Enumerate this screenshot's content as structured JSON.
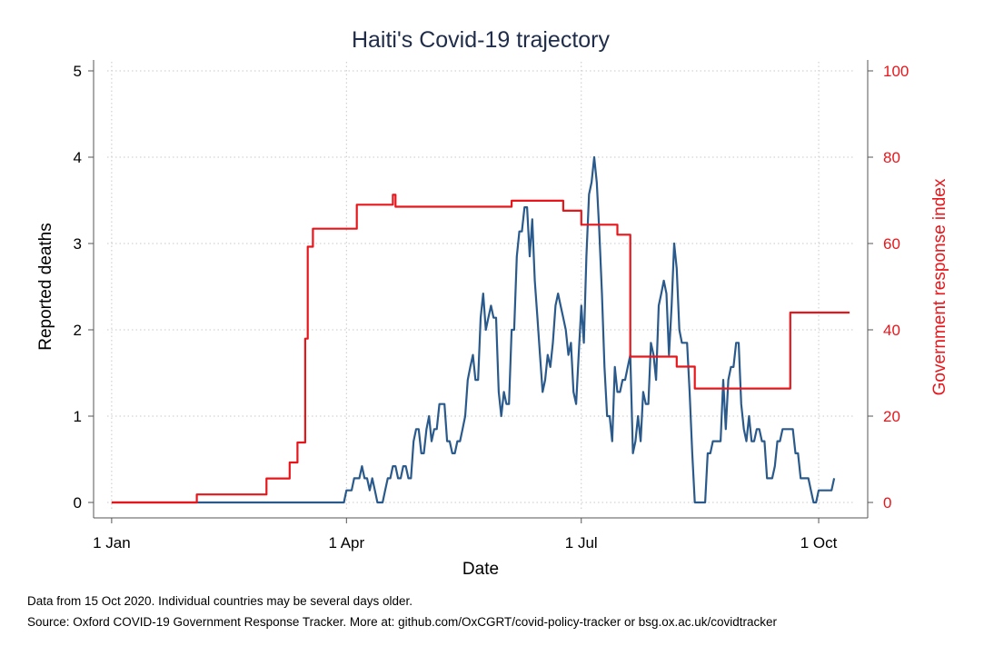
{
  "chart_data": {
    "type": "line",
    "title": "Haiti's Covid-19 trajectory",
    "xlabel": "Date",
    "ylabel": "Reported deaths",
    "y2label": "Government response index",
    "x_ticks": [
      {
        "date": "2020-01-01",
        "label": "1 Jan"
      },
      {
        "date": "2020-04-01",
        "label": "1 Apr"
      },
      {
        "date": "2020-07-01",
        "label": "1 Jul"
      },
      {
        "date": "2020-10-01",
        "label": "1 Oct"
      }
    ],
    "xlim": [
      "2019-12-25",
      "2020-10-20"
    ],
    "ylim": [
      0,
      5
    ],
    "y_ticks": [
      "0",
      "1",
      "2",
      "3",
      "4",
      "5"
    ],
    "y2lim": [
      0,
      100
    ],
    "y2_ticks": [
      "0",
      "20",
      "40",
      "60",
      "80",
      "100"
    ],
    "grid": true,
    "series": [
      {
        "axis": "left",
        "color": "#2a5a8c",
        "points": [
          [
            "2020-01-01",
            0
          ],
          [
            "2020-03-31",
            0
          ],
          [
            "2020-04-01",
            0.14
          ],
          [
            "2020-04-03",
            0.14
          ],
          [
            "2020-04-04",
            0.28
          ],
          [
            "2020-04-06",
            0.28
          ],
          [
            "2020-04-07",
            0.42
          ],
          [
            "2020-04-08",
            0.28
          ],
          [
            "2020-04-09",
            0.28
          ],
          [
            "2020-04-10",
            0.14
          ],
          [
            "2020-04-11",
            0.28
          ],
          [
            "2020-04-12",
            0.14
          ],
          [
            "2020-04-13",
            0
          ],
          [
            "2020-04-15",
            0
          ],
          [
            "2020-04-16",
            0.14
          ],
          [
            "2020-04-17",
            0.28
          ],
          [
            "2020-04-18",
            0.28
          ],
          [
            "2020-04-19",
            0.42
          ],
          [
            "2020-04-20",
            0.42
          ],
          [
            "2020-04-21",
            0.28
          ],
          [
            "2020-04-22",
            0.28
          ],
          [
            "2020-04-23",
            0.42
          ],
          [
            "2020-04-24",
            0.42
          ],
          [
            "2020-04-25",
            0.28
          ],
          [
            "2020-04-26",
            0.28
          ],
          [
            "2020-04-27",
            0.71
          ],
          [
            "2020-04-28",
            0.85
          ],
          [
            "2020-04-29",
            0.85
          ],
          [
            "2020-04-30",
            0.57
          ],
          [
            "2020-05-01",
            0.57
          ],
          [
            "2020-05-02",
            0.85
          ],
          [
            "2020-05-03",
            1.0
          ],
          [
            "2020-05-04",
            0.71
          ],
          [
            "2020-05-05",
            0.85
          ],
          [
            "2020-05-06",
            0.85
          ],
          [
            "2020-05-07",
            1.14
          ],
          [
            "2020-05-09",
            1.14
          ],
          [
            "2020-05-10",
            0.71
          ],
          [
            "2020-05-11",
            0.71
          ],
          [
            "2020-05-12",
            0.57
          ],
          [
            "2020-05-13",
            0.57
          ],
          [
            "2020-05-14",
            0.71
          ],
          [
            "2020-05-15",
            0.71
          ],
          [
            "2020-05-16",
            0.85
          ],
          [
            "2020-05-17",
            1.0
          ],
          [
            "2020-05-18",
            1.42
          ],
          [
            "2020-05-19",
            1.57
          ],
          [
            "2020-05-20",
            1.71
          ],
          [
            "2020-05-21",
            1.42
          ],
          [
            "2020-05-22",
            1.42
          ],
          [
            "2020-05-23",
            2.14
          ],
          [
            "2020-05-24",
            2.42
          ],
          [
            "2020-05-25",
            2.0
          ],
          [
            "2020-05-26",
            2.14
          ],
          [
            "2020-05-27",
            2.28
          ],
          [
            "2020-05-28",
            2.14
          ],
          [
            "2020-05-29",
            2.14
          ],
          [
            "2020-05-30",
            1.28
          ],
          [
            "2020-05-31",
            1.0
          ],
          [
            "2020-06-01",
            1.28
          ],
          [
            "2020-06-02",
            1.14
          ],
          [
            "2020-06-03",
            1.14
          ],
          [
            "2020-06-04",
            2.0
          ],
          [
            "2020-06-05",
            2.0
          ],
          [
            "2020-06-06",
            2.85
          ],
          [
            "2020-06-07",
            3.14
          ],
          [
            "2020-06-08",
            3.14
          ],
          [
            "2020-06-09",
            3.42
          ],
          [
            "2020-06-10",
            3.42
          ],
          [
            "2020-06-11",
            2.85
          ],
          [
            "2020-06-12",
            3.28
          ],
          [
            "2020-06-13",
            2.57
          ],
          [
            "2020-06-14",
            2.14
          ],
          [
            "2020-06-15",
            1.71
          ],
          [
            "2020-06-16",
            1.28
          ],
          [
            "2020-06-17",
            1.42
          ],
          [
            "2020-06-18",
            1.71
          ],
          [
            "2020-06-19",
            1.57
          ],
          [
            "2020-06-20",
            1.85
          ],
          [
            "2020-06-21",
            2.28
          ],
          [
            "2020-06-22",
            2.42
          ],
          [
            "2020-06-23",
            2.28
          ],
          [
            "2020-06-24",
            2.14
          ],
          [
            "2020-06-25",
            2.0
          ],
          [
            "2020-06-26",
            1.71
          ],
          [
            "2020-06-27",
            1.85
          ],
          [
            "2020-06-28",
            1.28
          ],
          [
            "2020-06-29",
            1.14
          ],
          [
            "2020-06-30",
            1.71
          ],
          [
            "2020-07-01",
            2.28
          ],
          [
            "2020-07-02",
            1.85
          ],
          [
            "2020-07-03",
            2.85
          ],
          [
            "2020-07-04",
            3.57
          ],
          [
            "2020-07-05",
            3.71
          ],
          [
            "2020-07-06",
            4.0
          ],
          [
            "2020-07-07",
            3.71
          ],
          [
            "2020-07-08",
            3.14
          ],
          [
            "2020-07-09",
            2.42
          ],
          [
            "2020-07-10",
            1.57
          ],
          [
            "2020-07-11",
            1.0
          ],
          [
            "2020-07-12",
            1.0
          ],
          [
            "2020-07-13",
            0.71
          ],
          [
            "2020-07-14",
            1.57
          ],
          [
            "2020-07-15",
            1.28
          ],
          [
            "2020-07-16",
            1.28
          ],
          [
            "2020-07-17",
            1.42
          ],
          [
            "2020-07-18",
            1.42
          ],
          [
            "2020-07-19",
            1.57
          ],
          [
            "2020-07-20",
            1.71
          ],
          [
            "2020-07-21",
            0.57
          ],
          [
            "2020-07-22",
            0.71
          ],
          [
            "2020-07-23",
            1.0
          ],
          [
            "2020-07-24",
            0.71
          ],
          [
            "2020-07-25",
            1.28
          ],
          [
            "2020-07-26",
            1.14
          ],
          [
            "2020-07-27",
            1.14
          ],
          [
            "2020-07-28",
            1.85
          ],
          [
            "2020-07-29",
            1.71
          ],
          [
            "2020-07-30",
            1.42
          ],
          [
            "2020-07-31",
            2.28
          ],
          [
            "2020-08-01",
            2.42
          ],
          [
            "2020-08-02",
            2.57
          ],
          [
            "2020-08-03",
            2.42
          ],
          [
            "2020-08-04",
            1.71
          ],
          [
            "2020-08-05",
            2.28
          ],
          [
            "2020-08-06",
            3.0
          ],
          [
            "2020-08-07",
            2.71
          ],
          [
            "2020-08-08",
            2.0
          ],
          [
            "2020-08-09",
            1.85
          ],
          [
            "2020-08-10",
            1.85
          ],
          [
            "2020-08-11",
            1.85
          ],
          [
            "2020-08-12",
            1.28
          ],
          [
            "2020-08-13",
            0.57
          ],
          [
            "2020-08-14",
            0
          ],
          [
            "2020-08-18",
            0
          ],
          [
            "2020-08-19",
            0.57
          ],
          [
            "2020-08-20",
            0.57
          ],
          [
            "2020-08-21",
            0.71
          ],
          [
            "2020-08-24",
            0.71
          ],
          [
            "2020-08-25",
            1.42
          ],
          [
            "2020-08-26",
            0.85
          ],
          [
            "2020-08-27",
            1.42
          ],
          [
            "2020-08-28",
            1.57
          ],
          [
            "2020-08-29",
            1.57
          ],
          [
            "2020-08-30",
            1.85
          ],
          [
            "2020-08-31",
            1.85
          ],
          [
            "2020-09-01",
            1.14
          ],
          [
            "2020-09-02",
            0.85
          ],
          [
            "2020-09-03",
            0.71
          ],
          [
            "2020-09-04",
            1.0
          ],
          [
            "2020-09-05",
            0.71
          ],
          [
            "2020-09-06",
            0.71
          ],
          [
            "2020-09-07",
            0.85
          ],
          [
            "2020-09-08",
            0.85
          ],
          [
            "2020-09-09",
            0.71
          ],
          [
            "2020-09-10",
            0.71
          ],
          [
            "2020-09-11",
            0.28
          ],
          [
            "2020-09-13",
            0.28
          ],
          [
            "2020-09-14",
            0.42
          ],
          [
            "2020-09-15",
            0.71
          ],
          [
            "2020-09-16",
            0.71
          ],
          [
            "2020-09-17",
            0.85
          ],
          [
            "2020-09-21",
            0.85
          ],
          [
            "2020-09-22",
            0.57
          ],
          [
            "2020-09-23",
            0.57
          ],
          [
            "2020-09-24",
            0.28
          ],
          [
            "2020-09-27",
            0.28
          ],
          [
            "2020-09-28",
            0.14
          ],
          [
            "2020-09-29",
            0
          ],
          [
            "2020-09-30",
            0
          ],
          [
            "2020-10-01",
            0.14
          ],
          [
            "2020-10-06",
            0.14
          ],
          [
            "2020-10-07",
            0.28
          ]
        ]
      },
      {
        "axis": "right",
        "color": "#e8161b",
        "step": true,
        "points": [
          [
            "2020-01-01",
            0
          ],
          [
            "2020-02-03",
            1.85
          ],
          [
            "2020-03-01",
            5.56
          ],
          [
            "2020-03-10",
            9.26
          ],
          [
            "2020-03-13",
            13.89
          ],
          [
            "2020-03-16",
            37.96
          ],
          [
            "2020-03-17",
            59.26
          ],
          [
            "2020-03-19",
            63.43
          ],
          [
            "2020-04-05",
            68.98
          ],
          [
            "2020-04-18",
            68.98
          ],
          [
            "2020-04-19",
            71.3
          ],
          [
            "2020-04-20",
            68.52
          ],
          [
            "2020-06-03",
            68.52
          ],
          [
            "2020-06-04",
            69.91
          ],
          [
            "2020-06-23",
            69.91
          ],
          [
            "2020-06-24",
            67.59
          ],
          [
            "2020-06-30",
            67.59
          ],
          [
            "2020-07-01",
            64.35
          ],
          [
            "2020-07-14",
            64.35
          ],
          [
            "2020-07-15",
            62.04
          ],
          [
            "2020-07-19",
            62.04
          ],
          [
            "2020-07-20",
            33.8
          ],
          [
            "2020-08-06",
            33.8
          ],
          [
            "2020-08-07",
            31.48
          ],
          [
            "2020-08-13",
            31.48
          ],
          [
            "2020-08-14",
            26.39
          ],
          [
            "2020-09-19",
            26.39
          ],
          [
            "2020-09-20",
            44.0
          ],
          [
            "2020-10-13",
            44.0
          ]
        ]
      }
    ]
  },
  "footnotes": [
    "Data from 15 Oct 2020. Individual countries may be several days older.",
    "Source: Oxford COVID-19 Government Response Tracker. More at: github.com/OxCGRT/covid-policy-tracker or bsg.ox.ac.uk/covidtracker"
  ]
}
